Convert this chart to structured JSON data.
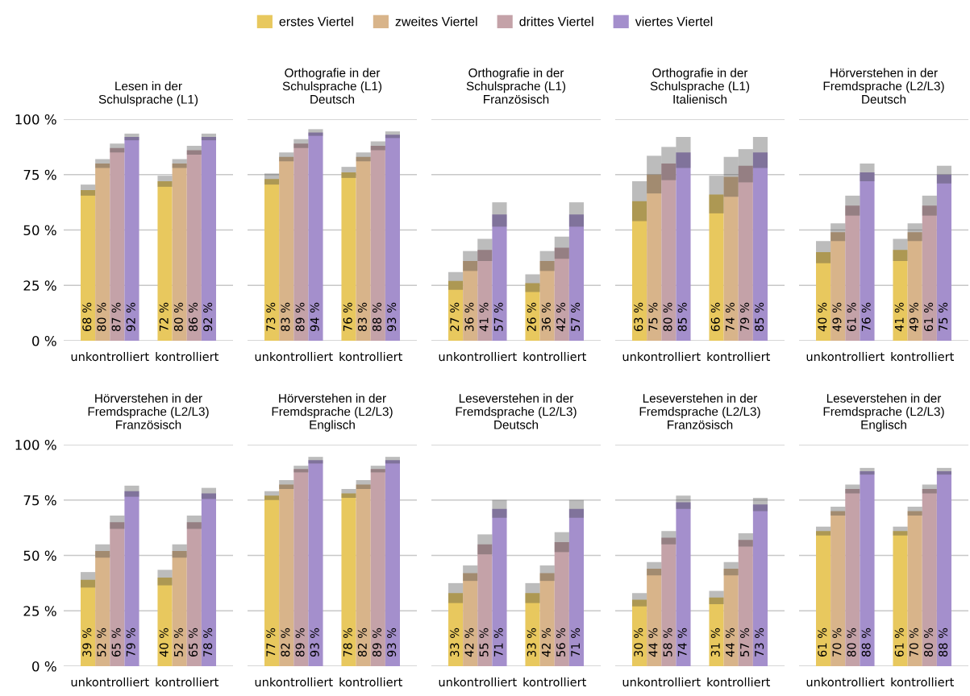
{
  "chart_data": [
    {
      "type": "bar",
      "title": "Lesen in der\nSchulsprache (L1)",
      "categories": [
        "unkontrolliert",
        "kontrolliert"
      ],
      "ylim": [
        0,
        100
      ],
      "yticks": [
        {
          "value": 0,
          "label": "0 %"
        },
        {
          "value": 25,
          "label": "25 %"
        },
        {
          "value": 50,
          "label": "50 %"
        },
        {
          "value": 75,
          "label": "75 %"
        },
        {
          "value": 100,
          "label": "100 %"
        }
      ],
      "grid": "y",
      "legend": "top",
      "series": [
        {
          "name": "erstes Viertel",
          "color": "#e8c85e",
          "values": [
            68,
            72
          ],
          "errors": [
            2.5,
            2.5
          ],
          "value_labels": [
            "68 %",
            "72 %"
          ]
        },
        {
          "name": "zweites Viertel",
          "color": "#d8b48a",
          "values": [
            80,
            80
          ],
          "errors": [
            2,
            2
          ],
          "value_labels": [
            "80 %",
            "80 %"
          ]
        },
        {
          "name": "drittes Viertel",
          "color": "#c4a2a8",
          "values": [
            87,
            86
          ],
          "errors": [
            2,
            2
          ],
          "value_labels": [
            "87 %",
            "86 %"
          ]
        },
        {
          "name": "viertes Viertel",
          "color": "#a48fcc",
          "values": [
            92,
            92
          ],
          "errors": [
            1.5,
            1.5
          ],
          "value_labels": [
            "92 %",
            "92 %"
          ]
        }
      ]
    },
    {
      "type": "bar",
      "title": "Orthografie in der\nSchulsprache (L1)\nDeutsch",
      "categories": [
        "unkontrolliert",
        "kontrolliert"
      ],
      "ylim": [
        0,
        100
      ],
      "yticks": [
        0,
        25,
        50,
        75,
        100
      ],
      "grid": "y",
      "tick_labels": "x",
      "series": [
        {
          "color": "#e8c85e",
          "values": [
            73,
            76
          ],
          "errors": [
            2.5,
            2.5
          ],
          "value_labels": [
            "73 %",
            "76 %"
          ]
        },
        {
          "color": "#d8b48a",
          "values": [
            83,
            83
          ],
          "errors": [
            2,
            2
          ],
          "value_labels": [
            "83 %",
            "83 %"
          ]
        },
        {
          "color": "#c4a2a8",
          "values": [
            89,
            88
          ],
          "errors": [
            2,
            2
          ],
          "value_labels": [
            "89 %",
            "88 %"
          ]
        },
        {
          "color": "#a48fcc",
          "values": [
            94,
            93
          ],
          "errors": [
            1.5,
            1.5
          ],
          "value_labels": [
            "94 %",
            "93 %"
          ]
        }
      ]
    },
    {
      "type": "bar",
      "title": "Orthografie in der\nSchulsprache (L1)\nFranzösisch",
      "categories": [
        "unkontrolliert",
        "kontrolliert"
      ],
      "ylim": [
        0,
        100
      ],
      "yticks": [
        0,
        25,
        50,
        75,
        100
      ],
      "grid": "y",
      "tick_labels": "x",
      "series": [
        {
          "color": "#e8c85e",
          "values": [
            27,
            26
          ],
          "errors": [
            4,
            4
          ],
          "value_labels": [
            "27 %",
            "26 %"
          ]
        },
        {
          "color": "#d8b48a",
          "values": [
            36,
            36
          ],
          "errors": [
            4.5,
            4.5
          ],
          "value_labels": [
            "36 %",
            "36 %"
          ]
        },
        {
          "color": "#c4a2a8",
          "values": [
            41,
            42
          ],
          "errors": [
            5,
            5
          ],
          "value_labels": [
            "41 %",
            "42 %"
          ]
        },
        {
          "color": "#a48fcc",
          "values": [
            57,
            57
          ],
          "errors": [
            5.5,
            5.5
          ],
          "value_labels": [
            "57 %",
            "57 %"
          ]
        }
      ]
    },
    {
      "type": "bar",
      "title": "Orthografie in der\nSchulsprache (L1)\nItalienisch",
      "categories": [
        "unkontrolliert",
        "kontrolliert"
      ],
      "ylim": [
        0,
        100
      ],
      "yticks": [
        0,
        25,
        50,
        75,
        100
      ],
      "grid": "y",
      "tick_labels": "x",
      "series": [
        {
          "color": "#e8c85e",
          "values": [
            63,
            66
          ],
          "errors": [
            9,
            8.5
          ],
          "value_labels": [
            "63 %",
            "66 %"
          ]
        },
        {
          "color": "#d8b48a",
          "values": [
            75,
            74
          ],
          "errors": [
            8.5,
            9
          ],
          "value_labels": [
            "75 %",
            "74 %"
          ]
        },
        {
          "color": "#c4a2a8",
          "values": [
            80,
            79
          ],
          "errors": [
            7.5,
            7.5
          ],
          "value_labels": [
            "80 %",
            "79 %"
          ]
        },
        {
          "color": "#a48fcc",
          "values": [
            85,
            85
          ],
          "errors": [
            7,
            7
          ],
          "value_labels": [
            "85 %",
            "85 %"
          ]
        }
      ]
    },
    {
      "type": "bar",
      "title": "Hörverstehen in der\nFremdsprache (L2/L3)\nDeutsch",
      "categories": [
        "unkontrolliert",
        "kontrolliert"
      ],
      "ylim": [
        0,
        100
      ],
      "yticks": [
        0,
        25,
        50,
        75,
        100
      ],
      "grid": "y",
      "tick_labels": "x",
      "series": [
        {
          "color": "#e8c85e",
          "values": [
            40,
            41
          ],
          "errors": [
            5,
            5
          ],
          "value_labels": [
            "40 %",
            "41 %"
          ]
        },
        {
          "color": "#d8b48a",
          "values": [
            49,
            49
          ],
          "errors": [
            4,
            4
          ],
          "value_labels": [
            "49 %",
            "49 %"
          ]
        },
        {
          "color": "#c4a2a8",
          "values": [
            61,
            61
          ],
          "errors": [
            4.5,
            4.5
          ],
          "value_labels": [
            "61 %",
            "61 %"
          ]
        },
        {
          "color": "#a48fcc",
          "values": [
            76,
            75
          ],
          "errors": [
            4,
            4
          ],
          "value_labels": [
            "76 %",
            "75 %"
          ]
        }
      ]
    },
    {
      "type": "bar",
      "title": "Hörverstehen in der\nFremdsprache (L2/L3)\nFranzösisch",
      "categories": [
        "unkontrolliert",
        "kontrolliert"
      ],
      "ylim": [
        0,
        100
      ],
      "yticks": [
        {
          "value": 0,
          "label": "0 %"
        },
        {
          "value": 25,
          "label": "25 %"
        },
        {
          "value": 50,
          "label": "50 %"
        },
        {
          "value": 75,
          "label": "75 %"
        },
        {
          "value": 100,
          "label": "100 %"
        }
      ],
      "grid": "y",
      "series": [
        {
          "color": "#e8c85e",
          "values": [
            39,
            40
          ],
          "errors": [
            3.5,
            3.5
          ],
          "value_labels": [
            "39 %",
            "40 %"
          ]
        },
        {
          "color": "#d8b48a",
          "values": [
            52,
            52
          ],
          "errors": [
            3,
            3
          ],
          "value_labels": [
            "52 %",
            "52 %"
          ]
        },
        {
          "color": "#c4a2a8",
          "values": [
            65,
            65
          ],
          "errors": [
            3,
            3
          ],
          "value_labels": [
            "65 %",
            "65 %"
          ]
        },
        {
          "color": "#a48fcc",
          "values": [
            79,
            78
          ],
          "errors": [
            2.5,
            2.5
          ],
          "value_labels": [
            "79 %",
            "78 %"
          ]
        }
      ]
    },
    {
      "type": "bar",
      "title": "Hörverstehen in der\nFremdsprache (L2/L3)\nEnglisch",
      "categories": [
        "unkontrolliert",
        "kontrolliert"
      ],
      "ylim": [
        0,
        100
      ],
      "yticks": [
        0,
        25,
        50,
        75,
        100
      ],
      "grid": "y",
      "tick_labels": "x",
      "series": [
        {
          "color": "#e8c85e",
          "values": [
            77,
            78
          ],
          "errors": [
            2,
            2
          ],
          "value_labels": [
            "77 %",
            "78 %"
          ]
        },
        {
          "color": "#d8b48a",
          "values": [
            82,
            82
          ],
          "errors": [
            2,
            2
          ],
          "value_labels": [
            "82 %",
            "82 %"
          ]
        },
        {
          "color": "#c4a2a8",
          "values": [
            89,
            89
          ],
          "errors": [
            1.5,
            1.5
          ],
          "value_labels": [
            "89 %",
            "89 %"
          ]
        },
        {
          "color": "#a48fcc",
          "values": [
            93,
            93
          ],
          "errors": [
            1.5,
            1.5
          ],
          "value_labels": [
            "93 %",
            "93 %"
          ]
        }
      ]
    },
    {
      "type": "bar",
      "title": "Leseverstehen in der\nFremdsprache (L2/L3)\nDeutsch",
      "categories": [
        "unkontrolliert",
        "kontrolliert"
      ],
      "ylim": [
        0,
        100
      ],
      "yticks": [
        0,
        25,
        50,
        75,
        100
      ],
      "grid": "y",
      "tick_labels": "x",
      "series": [
        {
          "color": "#e8c85e",
          "values": [
            33,
            33
          ],
          "errors": [
            4.5,
            4.5
          ],
          "value_labels": [
            "33 %",
            "33 %"
          ]
        },
        {
          "color": "#d8b48a",
          "values": [
            42,
            42
          ],
          "errors": [
            3.5,
            3.5
          ],
          "value_labels": [
            "42 %",
            "42 %"
          ]
        },
        {
          "color": "#c4a2a8",
          "values": [
            55,
            56
          ],
          "errors": [
            4.5,
            4.5
          ],
          "value_labels": [
            "55 %",
            "56 %"
          ]
        },
        {
          "color": "#a48fcc",
          "values": [
            71,
            71
          ],
          "errors": [
            4,
            4
          ],
          "value_labels": [
            "71 %",
            "71 %"
          ]
        }
      ]
    },
    {
      "type": "bar",
      "title": "Leseverstehen in der\nFremdsprache (L2/L3)\nFranzösisch",
      "categories": [
        "unkontrolliert",
        "kontrolliert"
      ],
      "ylim": [
        0,
        100
      ],
      "yticks": [
        0,
        25,
        50,
        75,
        100
      ],
      "grid": "y",
      "tick_labels": "x",
      "series": [
        {
          "color": "#e8c85e",
          "values": [
            30,
            31
          ],
          "errors": [
            3,
            3
          ],
          "value_labels": [
            "30 %",
            "31 %"
          ]
        },
        {
          "color": "#d8b48a",
          "values": [
            44,
            44
          ],
          "errors": [
            3,
            3
          ],
          "value_labels": [
            "44 %",
            "44 %"
          ]
        },
        {
          "color": "#c4a2a8",
          "values": [
            58,
            57
          ],
          "errors": [
            3,
            3
          ],
          "value_labels": [
            "58 %",
            "57 %"
          ]
        },
        {
          "color": "#a48fcc",
          "values": [
            74,
            73
          ],
          "errors": [
            3,
            3
          ],
          "value_labels": [
            "74 %",
            "73 %"
          ]
        }
      ]
    },
    {
      "type": "bar",
      "title": "Leseverstehen in der\nFremdsprache (L2/L3)\nEnglisch",
      "categories": [
        "unkontrolliert",
        "kontrolliert"
      ],
      "ylim": [
        0,
        100
      ],
      "yticks": [
        0,
        25,
        50,
        75,
        100
      ],
      "grid": "y",
      "tick_labels": "x",
      "series": [
        {
          "color": "#e8c85e",
          "values": [
            61,
            61
          ],
          "errors": [
            2,
            2
          ],
          "value_labels": [
            "61 %",
            "61 %"
          ]
        },
        {
          "color": "#d8b48a",
          "values": [
            70,
            70
          ],
          "errors": [
            2,
            2
          ],
          "value_labels": [
            "70 %",
            "70 %"
          ]
        },
        {
          "color": "#c4a2a8",
          "values": [
            80,
            80
          ],
          "errors": [
            2,
            2
          ],
          "value_labels": [
            "80 %",
            "80 %"
          ]
        },
        {
          "color": "#a48fcc",
          "values": [
            88,
            88
          ],
          "errors": [
            1.5,
            1.5
          ],
          "value_labels": [
            "88 %",
            "88 %"
          ]
        }
      ]
    }
  ]
}
